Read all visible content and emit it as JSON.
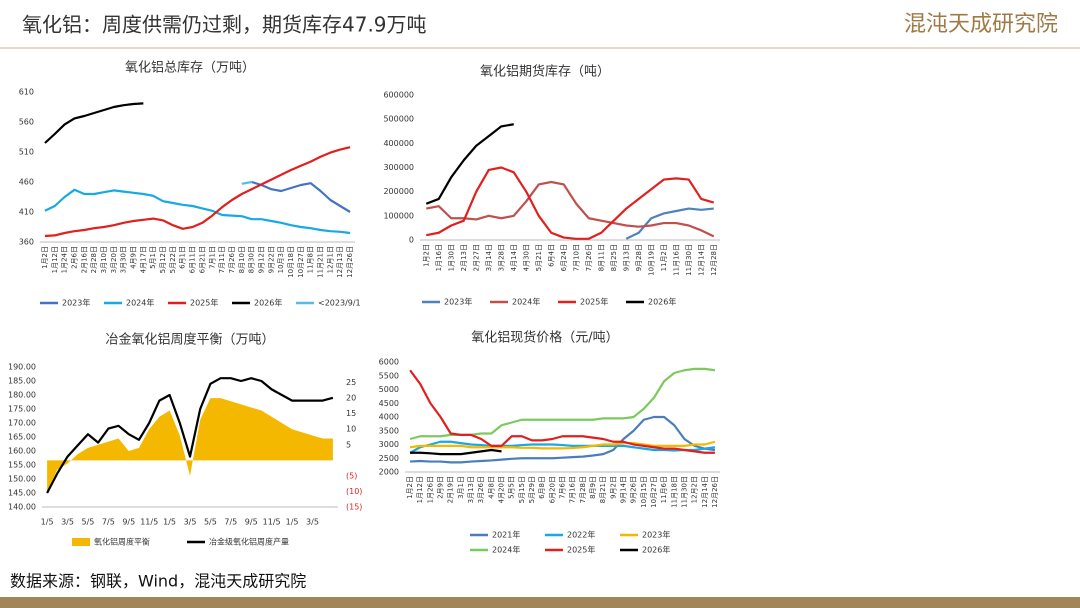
{
  "title": "氧化铝：周度供需仍过剩，期货库存47.9万吨",
  "logo": "混沌天成研究院",
  "source": "数据来源：钢联，Wind，混沌天成研究院",
  "chart_data": [
    {
      "type": "line",
      "title": "氧化铝总库存（万吨）",
      "grid": false,
      "categories": [
        "1月2日",
        "1月12日",
        "1月24日",
        "2月6日",
        "2月16日",
        "2月28日",
        "3月10日",
        "3月20日",
        "3月30日",
        "4月9日",
        "4月17日",
        "5月1日",
        "5月12日",
        "5月22日",
        "6月1日",
        "6月11日",
        "6月21日",
        "7月1日",
        "7月11日",
        "7月26日",
        "8月10日",
        "8月30日",
        "9月12日",
        "9月22日",
        "10月3日",
        "10月18日",
        "10月27日",
        "11月8日",
        "11月21日",
        "12月1日",
        "12月13日",
        "12月26日"
      ],
      "ylim": [
        360,
        610
      ],
      "yticks": [
        360,
        410,
        460,
        510,
        560,
        610
      ],
      "series": [
        {
          "name": "2023年",
          "color": "#4472c4",
          "values": [
            null,
            null,
            null,
            null,
            null,
            null,
            null,
            null,
            null,
            null,
            null,
            null,
            null,
            null,
            null,
            null,
            null,
            null,
            null,
            null,
            null,
            460,
            455,
            448,
            445,
            450,
            455,
            458,
            445,
            430,
            420,
            410
          ]
        },
        {
          "name": "2024年",
          "color": "#16a9e6",
          "values": [
            412,
            420,
            435,
            447,
            440,
            440,
            443,
            446,
            444,
            442,
            440,
            437,
            428,
            425,
            422,
            420,
            416,
            412,
            405,
            404,
            403,
            398,
            398,
            395,
            392,
            388,
            385,
            383,
            380,
            378,
            377,
            375
          ]
        },
        {
          "name": "2025年",
          "color": "#e0201f",
          "values": [
            370,
            371,
            375,
            378,
            380,
            383,
            385,
            388,
            392,
            395,
            397,
            399,
            396,
            388,
            382,
            385,
            392,
            404,
            418,
            430,
            440,
            448,
            456,
            464,
            472,
            480,
            487,
            494,
            502,
            509,
            514,
            518
          ]
        },
        {
          "name": "2026年",
          "color": "#000000",
          "values": [
            525,
            540,
            556,
            566,
            570,
            575,
            580,
            585,
            588,
            590,
            591,
            null,
            null,
            null,
            null,
            null,
            null,
            null,
            null,
            null,
            null,
            null,
            null,
            null,
            null,
            null,
            null,
            null,
            null,
            null,
            null,
            null
          ]
        },
        {
          "name": "<2023/9/1",
          "color": "#5cb8e6",
          "values": [
            null,
            null,
            null,
            null,
            null,
            null,
            null,
            null,
            null,
            null,
            null,
            null,
            null,
            null,
            null,
            null,
            null,
            null,
            null,
            null,
            457,
            460,
            null,
            null,
            null,
            null,
            null,
            null,
            null,
            null,
            null,
            null
          ]
        }
      ]
    },
    {
      "type": "line",
      "title": "氧化铝期货库存（吨）",
      "grid": false,
      "categories": [
        "1月2日",
        "1月16日",
        "1月30日",
        "2月13日",
        "2月27日",
        "3月14日",
        "3月28日",
        "4月14日",
        "4月30日",
        "5月21日",
        "6月4日",
        "6月24日",
        "7月10日",
        "7月26日",
        "8月11日",
        "8月25日",
        "9月13日",
        "9月28日",
        "10月19日",
        "11月2日",
        "11月16日",
        "11月30日",
        "12月14日",
        "12月28日"
      ],
      "ylim": [
        0,
        600000
      ],
      "yticks": [
        0,
        100000,
        200000,
        300000,
        400000,
        500000,
        600000
      ],
      "series": [
        {
          "name": "2023年",
          "color": "#4f81bd",
          "values": [
            null,
            null,
            null,
            null,
            null,
            null,
            null,
            null,
            null,
            null,
            null,
            null,
            null,
            null,
            null,
            null,
            5000,
            30000,
            90000,
            110000,
            120000,
            130000,
            125000,
            130000
          ]
        },
        {
          "name": "2024年",
          "color": "#c0504d",
          "values": [
            130000,
            140000,
            90000,
            90000,
            85000,
            100000,
            90000,
            100000,
            160000,
            230000,
            240000,
            230000,
            150000,
            90000,
            80000,
            70000,
            60000,
            55000,
            60000,
            70000,
            70000,
            60000,
            40000,
            15000
          ]
        },
        {
          "name": "2025年",
          "color": "#e0201f",
          "values": [
            20000,
            30000,
            60000,
            80000,
            200000,
            290000,
            300000,
            280000,
            200000,
            100000,
            30000,
            10000,
            5000,
            5000,
            30000,
            80000,
            130000,
            170000,
            210000,
            250000,
            255000,
            250000,
            170000,
            155000
          ]
        },
        {
          "name": "2026年",
          "color": "#000000",
          "values": [
            150000,
            170000,
            260000,
            330000,
            390000,
            430000,
            470000,
            479000,
            null,
            null,
            null,
            null,
            null,
            null,
            null,
            null,
            null,
            null,
            null,
            null,
            null,
            null,
            null,
            null
          ]
        }
      ]
    },
    {
      "type": "combo",
      "title": "冶金氧化铝周度平衡（万吨）",
      "grid": false,
      "categories": [
        "1/5",
        null,
        "3/5",
        null,
        "5/5",
        null,
        "7/5",
        null,
        "9/5",
        null,
        "11/5",
        null,
        "1/5",
        null,
        "3/5",
        null,
        "5/5",
        null,
        "7/5",
        null,
        "9/5",
        null,
        "11/5",
        null,
        "1/5",
        null,
        "3/5",
        null,
        null
      ],
      "ylim": [
        140,
        190
      ],
      "yticks": [
        {
          "value": 140,
          "label": "140.00"
        },
        {
          "value": 145,
          "label": "145.00"
        },
        {
          "value": 150,
          "label": "150.00"
        },
        {
          "value": 155,
          "label": "155.00"
        },
        {
          "value": 160,
          "label": "160.00"
        },
        {
          "value": 165,
          "label": "165.00"
        },
        {
          "value": 170,
          "label": "170.00"
        },
        {
          "value": 175,
          "label": "175.00"
        },
        {
          "value": 180,
          "label": "180.00"
        },
        {
          "value": 185,
          "label": "185.00"
        },
        {
          "value": 190,
          "label": "190.00"
        }
      ],
      "y2lim": [
        -15,
        30
      ],
      "y2ticks": [
        {
          "value": -15,
          "label": "(15)"
        },
        {
          "value": -10,
          "label": "(10)"
        },
        {
          "value": -5,
          "label": "(5)"
        },
        5,
        10,
        15,
        20,
        25
      ],
      "series": [
        {
          "name": "氧化铝周度平衡",
          "color": "#f5b800",
          "type": "area",
          "axis": "y2",
          "values": [
            -10,
            -3,
            -1,
            2,
            4,
            5,
            6,
            7,
            3,
            4,
            10,
            14,
            16,
            8,
            -5,
            13,
            20,
            20,
            19,
            18,
            17,
            16,
            14,
            12,
            10,
            9,
            8,
            7,
            7
          ]
        },
        {
          "name": "冶金级氧化铝周度产量",
          "color": "#000000",
          "type": "line",
          "values": [
            145,
            152,
            158,
            162,
            166,
            163,
            168,
            169,
            166,
            164,
            170,
            178,
            180,
            170,
            158,
            175,
            184,
            186,
            186,
            185,
            186,
            185,
            182,
            180,
            178,
            178,
            178,
            178,
            179
          ]
        }
      ]
    },
    {
      "type": "line",
      "title": "氧化铝现货价格（元/吨）",
      "grid": false,
      "categories": [
        "1月2日",
        "1月12日",
        "1月26日",
        "2月9日",
        "2月19日",
        "3月1日",
        "3月13日",
        "3月26日",
        "4月8日",
        "4月20日",
        "5月5日",
        "5月15日",
        "5月29日",
        "6月8日",
        "6月20日",
        "7月6日",
        "7月16日",
        "7月28日",
        "8月9日",
        "8月21日",
        "9月2日",
        "9月14日",
        "9月26日",
        "10月15日",
        "10月27日",
        "11月6日",
        "11月18日",
        "11月30日",
        "12月2日",
        "12月14日",
        "12月26日"
      ],
      "ylim": [
        2000,
        6000
      ],
      "yticks": [
        2000,
        2500,
        3000,
        3500,
        4000,
        4500,
        5000,
        5500,
        6000
      ],
      "series": [
        {
          "name": "2021年",
          "color": "#4a7ebb",
          "values": [
            2380,
            2400,
            2380,
            2380,
            2350,
            2350,
            2380,
            2400,
            2420,
            2450,
            2480,
            2500,
            2500,
            2500,
            2500,
            2520,
            2540,
            2560,
            2600,
            2650,
            2800,
            3200,
            3500,
            3900,
            4000,
            4000,
            3700,
            3200,
            2950,
            2850,
            2800
          ]
        },
        {
          "name": "2022年",
          "color": "#16a9e6",
          "values": [
            2700,
            2900,
            3000,
            3100,
            3100,
            3050,
            3000,
            2980,
            2950,
            2950,
            2950,
            2980,
            3000,
            3000,
            3000,
            2980,
            2950,
            2950,
            2950,
            2950,
            2950,
            2950,
            2900,
            2850,
            2800,
            2800,
            2780,
            2800,
            2800,
            2850,
            2900
          ]
        },
        {
          "name": "2023年",
          "color": "#f5b800",
          "values": [
            2900,
            2950,
            2950,
            2950,
            2950,
            2950,
            2900,
            2900,
            2900,
            2900,
            2900,
            2880,
            2880,
            2860,
            2860,
            2860,
            2870,
            2900,
            2950,
            3000,
            3000,
            3050,
            3050,
            3000,
            2950,
            2950,
            2950,
            2950,
            3000,
            3000,
            3100
          ]
        },
        {
          "name": "2024年",
          "color": "#7dc95e",
          "values": [
            3200,
            3300,
            3300,
            3300,
            3350,
            3350,
            3350,
            3400,
            3400,
            3700,
            3800,
            3900,
            3900,
            3900,
            3900,
            3900,
            3900,
            3900,
            3900,
            3950,
            3950,
            3950,
            4000,
            4300,
            4700,
            5300,
            5600,
            5700,
            5750,
            5750,
            5700
          ]
        },
        {
          "name": "2025年",
          "color": "#e0201f",
          "values": [
            5700,
            5200,
            4500,
            4000,
            3400,
            3350,
            3350,
            3200,
            2950,
            2950,
            3300,
            3300,
            3150,
            3150,
            3200,
            3300,
            3300,
            3300,
            3250,
            3200,
            3100,
            3100,
            3000,
            2950,
            2900,
            2850,
            2850,
            2800,
            2750,
            2700,
            2700
          ]
        },
        {
          "name": "2026年",
          "color": "#000000",
          "values": [
            2700,
            2700,
            2680,
            2650,
            2650,
            2650,
            2700,
            2750,
            2800,
            2750,
            null,
            null,
            null,
            null,
            null,
            null,
            null,
            null,
            null,
            null,
            null,
            null,
            null,
            null,
            null,
            null,
            null,
            null,
            null,
            null,
            null
          ]
        }
      ]
    }
  ]
}
